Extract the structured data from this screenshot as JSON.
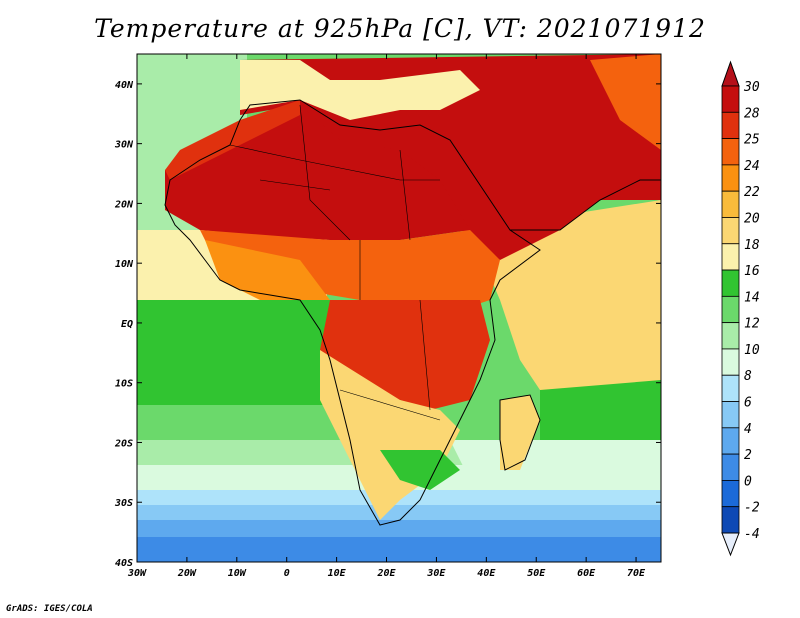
{
  "title": "Temperature at 925hPa [C], VT: 2021071912",
  "credit": "GrADS: IGES/COLA",
  "map": {
    "lon_ticks": [
      "30W",
      "20W",
      "10W",
      "0",
      "10E",
      "20E",
      "30E",
      "40E",
      "50E",
      "60E",
      "70E"
    ],
    "lat_ticks": [
      "40N",
      "30N",
      "20N",
      "10N",
      "EQ",
      "10S",
      "20S",
      "30S",
      "40S"
    ],
    "lon_range": [
      -30,
      75
    ],
    "lat_range": [
      -40,
      45
    ]
  },
  "colorbar": {
    "labels": [
      "30",
      "28",
      "25",
      "24",
      "22",
      "20",
      "18",
      "16",
      "14",
      "12",
      "10",
      "8",
      "6",
      "4",
      "2",
      "0",
      "-2",
      "-4"
    ],
    "colors": [
      "#c40e0e",
      "#e0310e",
      "#f4620e",
      "#fb9111",
      "#f9bb3b",
      "#fbd773",
      "#fbf1ad",
      "#31c431",
      "#6bd96b",
      "#a9eca9",
      "#dafadf",
      "#aee3fa",
      "#87c9f5",
      "#5ea9ee",
      "#3d8be6",
      "#1b6ad8",
      "#0d49b5",
      "#10237a"
    ],
    "over_color": "#b5101a",
    "under_color": "#e6eefb"
  },
  "colors": {
    "ocean_north": "#a9eca9",
    "ocean_south_cold": "#3d8be6"
  }
}
